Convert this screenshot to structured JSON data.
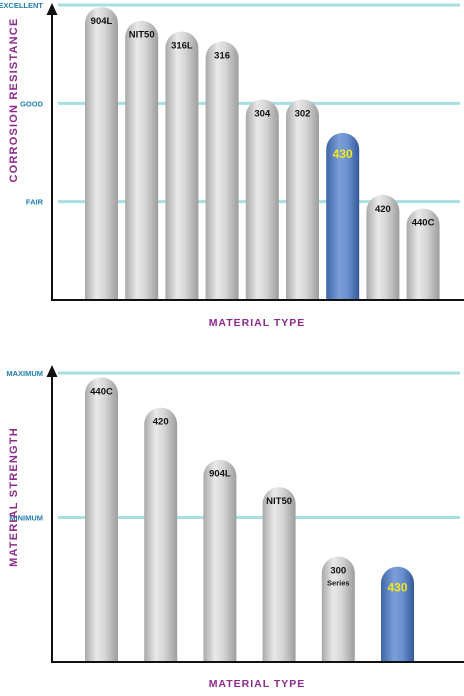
{
  "chart_data": [
    {
      "type": "bar",
      "title": "",
      "ylabel": "CORROSION RESISTANCE",
      "xlabel": "MATERIAL TYPE",
      "y_levels": [
        {
          "label": "EXCELLENT",
          "value": 3
        },
        {
          "label": "GOOD",
          "value": 2
        },
        {
          "label": "FAIR",
          "value": 1
        }
      ],
      "ylim": [
        0,
        3
      ],
      "categories": [
        "904L",
        "NIT50",
        "316L",
        "316",
        "304",
        "302",
        "430",
        "420",
        "440C"
      ],
      "values": [
        2.98,
        2.84,
        2.73,
        2.63,
        2.04,
        2.04,
        1.7,
        1.07,
        0.93
      ],
      "highlight": "430",
      "bar_color": "#c9c9c9",
      "highlight_color": "#5f86c7",
      "highlight_label_color": "#f3e81c",
      "gridline_color": "#a8dfe0",
      "axis_label_color": "#8c2b8c",
      "level_label_color": "#1f7fb0"
    },
    {
      "type": "bar",
      "title": "",
      "ylabel": "MATERIAL STRENGTH",
      "xlabel": "MATERIAL TYPE",
      "y_levels": [
        {
          "label": "MAXIMUM",
          "value": 2
        },
        {
          "label": "MINIMUM",
          "value": 1
        }
      ],
      "ylim": [
        0,
        2
      ],
      "categories": [
        "440C",
        "420",
        "904L",
        "NIT50",
        "300",
        "430"
      ],
      "category_sublabels": [
        "",
        "",
        "",
        "",
        "Series",
        ""
      ],
      "values": [
        1.97,
        1.76,
        1.4,
        1.21,
        0.73,
        0.66
      ],
      "highlight": "430",
      "bar_color": "#c9c9c9",
      "highlight_color": "#5f86c7",
      "highlight_label_color": "#f3e81c",
      "gridline_color": "#a8dfe0",
      "axis_label_color": "#8c2b8c",
      "level_label_color": "#1f7fb0"
    }
  ]
}
